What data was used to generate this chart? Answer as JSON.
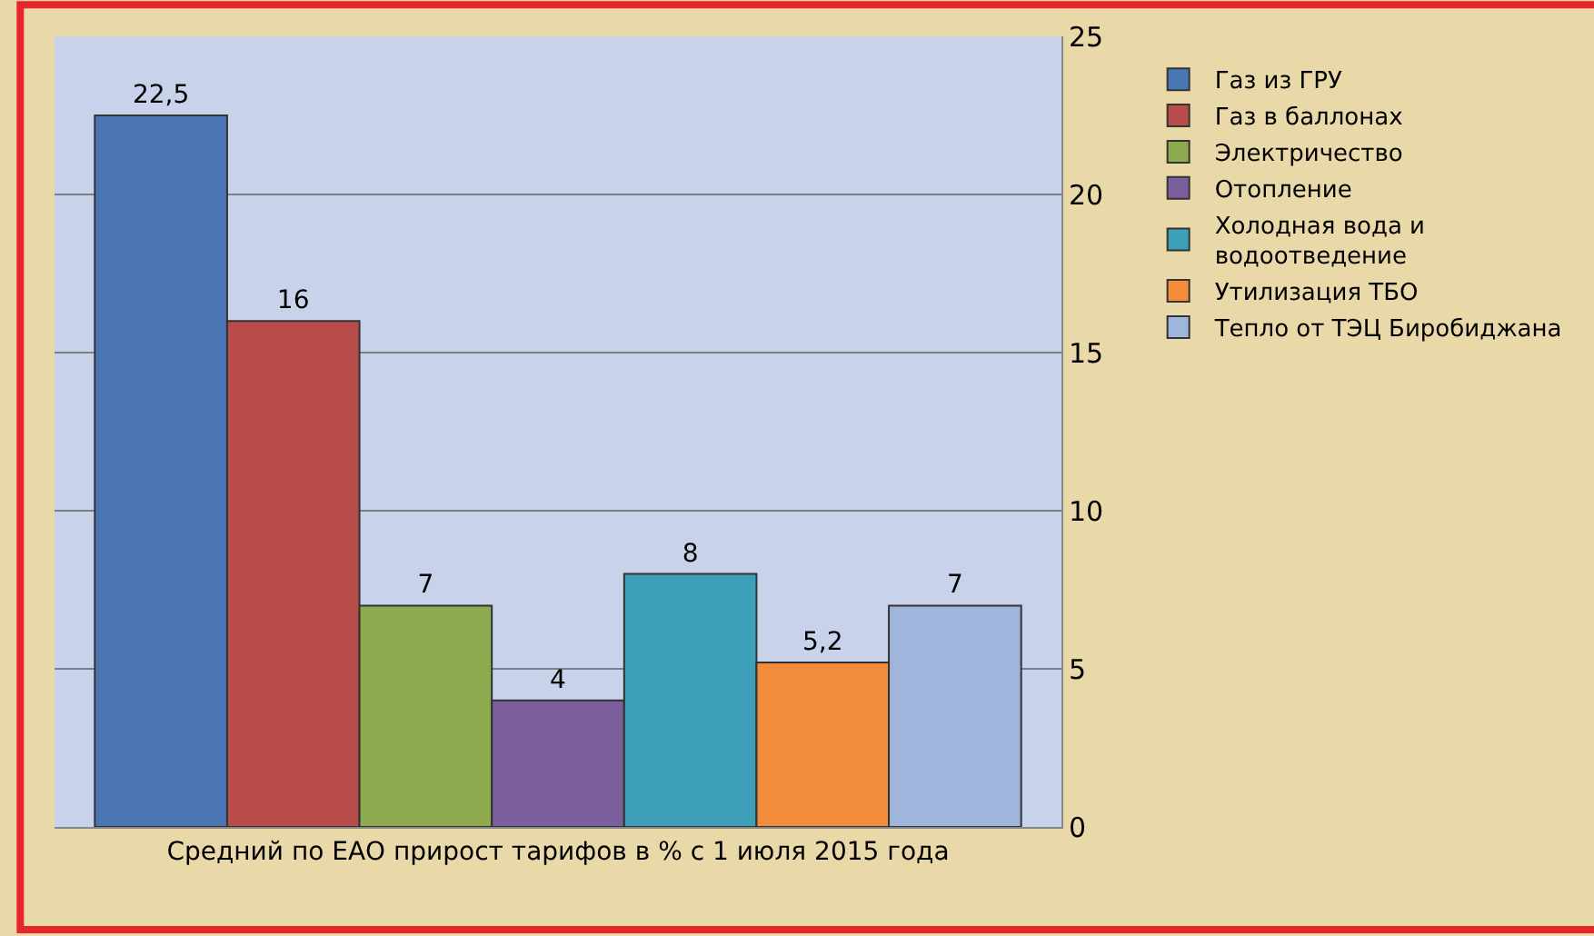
{
  "chart_data": {
    "type": "bar",
    "categories": [
      "Средний по ЕАО прирост тарифов в % с 1 июля 2015 года"
    ],
    "series": [
      {
        "name": "Газ из ГРУ",
        "color": "#4a76b5",
        "values": [
          22.5
        ],
        "value_labels": [
          "22,5"
        ]
      },
      {
        "name": "Газ в баллонах",
        "color": "#b84c4a",
        "values": [
          16
        ],
        "value_labels": [
          "16"
        ]
      },
      {
        "name": "Электричество",
        "color": "#8eaa4f",
        "values": [
          7
        ],
        "value_labels": [
          "7"
        ]
      },
      {
        "name": "Отопление",
        "color": "#7a5f9c",
        "values": [
          4
        ],
        "value_labels": [
          "4"
        ]
      },
      {
        "name": "Холодная вода и водоотведение",
        "color": "#3ea0b8",
        "values": [
          8
        ],
        "value_labels": [
          "8"
        ]
      },
      {
        "name": "Утилизация ТБО",
        "color": "#f08c3a",
        "values": [
          5.2
        ],
        "value_labels": [
          "5,2"
        ]
      },
      {
        "name": "Тепло от ТЭЦ Биробиджана",
        "color": "#9fb5dc",
        "values": [
          7
        ],
        "value_labels": [
          "7"
        ]
      }
    ],
    "ylim": [
      0,
      25
    ],
    "yticks": [
      0,
      5,
      10,
      15,
      20,
      25
    ],
    "grid": "y",
    "legend": "right"
  }
}
